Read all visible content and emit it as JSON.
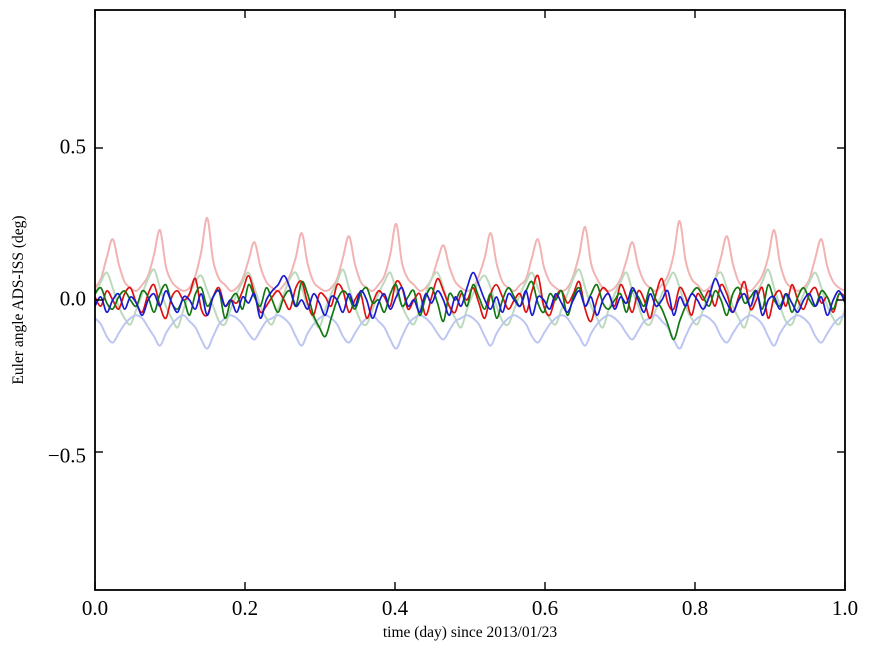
{
  "figure": {
    "xlabel": "time (day) since 2013/01/23",
    "ylabel": "Euler angle ADS-ISS (deg)"
  },
  "axes": {
    "xlim": [
      0.0,
      1.0
    ],
    "ylim": [
      -0.954,
      0.954
    ],
    "xticks": [
      0.0,
      0.2,
      0.4,
      0.6,
      0.8,
      1.0
    ],
    "xtick_labels": [
      "0.0",
      "0.2",
      "0.4",
      "0.6",
      "0.8",
      "1.0"
    ],
    "yticks": [
      0.5,
      0.0,
      -0.5
    ],
    "ytick_labels": [
      "0.5",
      "0.0",
      "−0.5"
    ],
    "background": "#ffffff",
    "frame_color": "#000000",
    "grid": false,
    "legend": "none"
  },
  "chart_data": {
    "type": "line",
    "title": "",
    "xlabel": "time (day) since 2013/01/23",
    "ylabel": "Euler angle ADS-ISS (deg)",
    "xlim": [
      0.0,
      1.0
    ],
    "ylim": [
      -0.954,
      0.954
    ],
    "grid": false,
    "legend": "none",
    "n_points": 128,
    "x_sampling": "128 uniform samples of time from 0.0 to 1.0 day; about 16 oscillation cycles per day",
    "series": [
      {
        "name": "pale-red",
        "color": "#f2b3b3",
        "width": 2.0,
        "values": [
          0.04,
          0.07,
          0.14,
          0.2,
          0.12,
          0.06,
          0.04,
          0.03,
          0.05,
          0.08,
          0.15,
          0.23,
          0.11,
          0.06,
          0.04,
          0.03,
          0.04,
          0.08,
          0.16,
          0.27,
          0.13,
          0.07,
          0.05,
          0.03,
          0.04,
          0.07,
          0.13,
          0.19,
          0.11,
          0.06,
          0.04,
          0.03,
          0.05,
          0.08,
          0.14,
          0.22,
          0.12,
          0.06,
          0.04,
          0.03,
          0.04,
          0.07,
          0.14,
          0.21,
          0.12,
          0.06,
          0.04,
          0.03,
          0.05,
          0.08,
          0.15,
          0.25,
          0.12,
          0.07,
          0.05,
          0.03,
          0.04,
          0.07,
          0.13,
          0.18,
          0.11,
          0.06,
          0.04,
          0.03,
          0.04,
          0.08,
          0.14,
          0.22,
          0.12,
          0.06,
          0.04,
          0.03,
          0.05,
          0.07,
          0.14,
          0.2,
          0.11,
          0.06,
          0.04,
          0.03,
          0.04,
          0.08,
          0.15,
          0.24,
          0.12,
          0.07,
          0.04,
          0.03,
          0.04,
          0.07,
          0.13,
          0.19,
          0.11,
          0.06,
          0.04,
          0.03,
          0.05,
          0.08,
          0.15,
          0.26,
          0.13,
          0.07,
          0.05,
          0.03,
          0.04,
          0.07,
          0.14,
          0.21,
          0.12,
          0.06,
          0.04,
          0.03,
          0.05,
          0.08,
          0.14,
          0.23,
          0.12,
          0.06,
          0.04,
          0.03,
          0.04,
          0.07,
          0.14,
          0.2,
          0.11,
          0.06,
          0.04,
          0.03
        ]
      },
      {
        "name": "pale-green",
        "color": "#bdd9bd",
        "width": 2.0,
        "values": [
          0.02,
          0.06,
          0.09,
          0.04,
          -0.02,
          -0.06,
          -0.08,
          -0.03,
          0.02,
          0.07,
          0.1,
          0.04,
          -0.02,
          -0.06,
          -0.09,
          -0.03,
          0.02,
          0.06,
          0.08,
          0.03,
          -0.02,
          -0.07,
          -0.08,
          -0.03,
          0.02,
          0.06,
          0.09,
          0.04,
          -0.02,
          -0.06,
          -0.08,
          -0.03,
          0.02,
          0.07,
          0.09,
          0.04,
          -0.02,
          -0.06,
          -0.09,
          -0.03,
          0.02,
          0.06,
          0.1,
          0.04,
          -0.02,
          -0.07,
          -0.08,
          -0.03,
          0.02,
          0.06,
          0.09,
          0.03,
          -0.02,
          -0.06,
          -0.08,
          -0.03,
          0.02,
          0.07,
          0.09,
          0.04,
          -0.02,
          -0.06,
          -0.09,
          -0.03,
          0.02,
          0.06,
          0.08,
          0.04,
          -0.02,
          -0.07,
          -0.08,
          -0.03,
          0.02,
          0.06,
          0.09,
          0.04,
          -0.02,
          -0.06,
          -0.08,
          -0.03,
          0.02,
          0.07,
          0.1,
          0.04,
          -0.02,
          -0.06,
          -0.09,
          -0.03,
          0.02,
          0.06,
          0.09,
          0.03,
          -0.02,
          -0.07,
          -0.08,
          -0.03,
          0.02,
          0.06,
          0.09,
          0.04,
          -0.02,
          -0.06,
          -0.08,
          -0.03,
          0.02,
          0.07,
          0.09,
          0.04,
          -0.02,
          -0.06,
          -0.09,
          -0.03,
          0.02,
          0.06,
          0.1,
          0.04,
          -0.02,
          -0.07,
          -0.08,
          -0.03,
          0.02,
          0.06,
          0.09,
          0.04,
          -0.02,
          -0.06,
          -0.08,
          -0.03
        ]
      },
      {
        "name": "pale-blue",
        "color": "#bdc6f2",
        "width": 2.0,
        "values": [
          -0.06,
          -0.08,
          -0.12,
          -0.14,
          -0.11,
          -0.08,
          -0.06,
          -0.05,
          -0.06,
          -0.09,
          -0.12,
          -0.15,
          -0.11,
          -0.08,
          -0.06,
          -0.05,
          -0.07,
          -0.09,
          -0.13,
          -0.16,
          -0.12,
          -0.08,
          -0.06,
          -0.05,
          -0.06,
          -0.08,
          -0.11,
          -0.13,
          -0.1,
          -0.07,
          -0.06,
          -0.05,
          -0.06,
          -0.08,
          -0.12,
          -0.15,
          -0.11,
          -0.08,
          -0.06,
          -0.05,
          -0.06,
          -0.08,
          -0.12,
          -0.14,
          -0.11,
          -0.08,
          -0.06,
          -0.05,
          -0.07,
          -0.09,
          -0.13,
          -0.16,
          -0.12,
          -0.08,
          -0.06,
          -0.05,
          -0.06,
          -0.08,
          -0.11,
          -0.13,
          -0.1,
          -0.07,
          -0.06,
          -0.05,
          -0.06,
          -0.08,
          -0.12,
          -0.15,
          -0.11,
          -0.08,
          -0.06,
          -0.05,
          -0.06,
          -0.08,
          -0.12,
          -0.14,
          -0.11,
          -0.08,
          -0.06,
          -0.05,
          -0.06,
          -0.09,
          -0.12,
          -0.15,
          -0.11,
          -0.08,
          -0.06,
          -0.05,
          -0.06,
          -0.08,
          -0.11,
          -0.13,
          -0.1,
          -0.07,
          -0.06,
          -0.05,
          -0.07,
          -0.09,
          -0.13,
          -0.16,
          -0.12,
          -0.08,
          -0.06,
          -0.05,
          -0.06,
          -0.08,
          -0.12,
          -0.14,
          -0.11,
          -0.08,
          -0.06,
          -0.05,
          -0.06,
          -0.08,
          -0.12,
          -0.15,
          -0.11,
          -0.08,
          -0.06,
          -0.05,
          -0.06,
          -0.08,
          -0.12,
          -0.14,
          -0.11,
          -0.08,
          -0.06,
          -0.05
        ]
      },
      {
        "name": "red",
        "color": "#e01010",
        "width": 1.7,
        "values": [
          0.01,
          -0.02,
          0.03,
          0.0,
          -0.03,
          0.02,
          0.04,
          -0.01,
          -0.04,
          0.02,
          0.05,
          -0.02,
          -0.06,
          0.01,
          0.03,
          0.0,
          0.02,
          0.07,
          -0.03,
          -0.05,
          0.01,
          0.04,
          -0.02,
          0.0,
          -0.01,
          0.03,
          0.08,
          0.02,
          -0.04,
          -0.02,
          0.01,
          0.03,
          0.0,
          -0.03,
          0.04,
          0.06,
          -0.01,
          -0.05,
          0.02,
          0.01,
          -0.02,
          0.05,
          0.03,
          -0.04,
          0.0,
          0.02,
          -0.06,
          -0.01,
          0.03,
          0.01,
          -0.02,
          0.06,
          0.04,
          -0.03,
          0.0,
          0.02,
          -0.05,
          0.01,
          0.07,
          0.03,
          -0.02,
          -0.04,
          0.02,
          0.0,
          0.04,
          -0.01,
          -0.06,
          0.02,
          0.05,
          0.01,
          -0.03,
          0.0,
          0.02,
          -0.04,
          0.03,
          0.08,
          -0.02,
          -0.05,
          0.01,
          0.03,
          -0.01,
          0.02,
          0.06,
          -0.03,
          -0.07,
          0.0,
          0.04,
          0.02,
          -0.02,
          0.05,
          0.01,
          -0.04,
          0.03,
          0.0,
          -0.06,
          0.02,
          0.07,
          -0.01,
          -0.03,
          0.04,
          0.01,
          -0.05,
          0.02,
          0.0,
          0.03,
          -0.02,
          0.05,
          0.02,
          -0.04,
          0.01,
          0.06,
          -0.03,
          0.0,
          0.04,
          -0.06,
          0.01,
          0.03,
          -0.02,
          0.05,
          0.0,
          -0.03,
          0.02,
          0.04,
          -0.01,
          0.01,
          -0.04,
          0.02,
          0.01
        ]
      },
      {
        "name": "green",
        "color": "#117711",
        "width": 1.7,
        "values": [
          0.02,
          0.04,
          -0.01,
          -0.03,
          0.01,
          0.03,
          0.0,
          -0.02,
          0.03,
          0.01,
          -0.04,
          0.02,
          0.05,
          -0.01,
          -0.03,
          0.0,
          -0.05,
          0.02,
          0.04,
          -0.02,
          0.01,
          0.03,
          -0.06,
          0.0,
          0.02,
          -0.03,
          0.05,
          0.01,
          -0.02,
          0.04,
          0.0,
          -0.04,
          0.01,
          0.03,
          -0.02,
          0.06,
          0.02,
          -0.05,
          -0.09,
          -0.12,
          -0.06,
          0.0,
          0.03,
          0.01,
          -0.03,
          0.02,
          0.04,
          -0.01,
          0.0,
          -0.04,
          0.02,
          0.05,
          -0.02,
          0.01,
          0.03,
          -0.05,
          0.01,
          0.04,
          -0.01,
          -0.07,
          0.02,
          0.0,
          0.03,
          -0.02,
          0.05,
          0.01,
          -0.03,
          0.02,
          -0.06,
          0.0,
          0.04,
          0.01,
          -0.02,
          0.03,
          0.06,
          -0.01,
          -0.04,
          0.02,
          0.0,
          0.03,
          -0.05,
          0.01,
          0.04,
          -0.02,
          0.02,
          0.05,
          -0.01,
          -0.03,
          0.0,
          0.02,
          -0.04,
          0.03,
          0.01,
          -0.02,
          0.04,
          0.0,
          -0.03,
          -0.08,
          -0.13,
          -0.07,
          -0.02,
          0.02,
          0.04,
          0.01,
          -0.02,
          0.03,
          0.0,
          -0.05,
          0.02,
          0.04,
          -0.01,
          0.01,
          0.03,
          -0.03,
          0.05,
          0.0,
          -0.02,
          0.02,
          -0.04,
          0.01,
          0.04,
          0.0,
          -0.02,
          0.03,
          0.01,
          -0.03,
          0.02,
          0.0
        ]
      },
      {
        "name": "blue",
        "color": "#1a1ad1",
        "width": 1.7,
        "values": [
          -0.02,
          0.01,
          -0.04,
          0.0,
          0.02,
          -0.03,
          0.01,
          -0.01,
          -0.05,
          0.0,
          0.02,
          -0.02,
          0.03,
          -0.01,
          -0.04,
          0.01,
          0.0,
          -0.03,
          0.02,
          -0.05,
          0.01,
          0.03,
          -0.02,
          0.0,
          -0.04,
          0.01,
          -0.01,
          0.02,
          -0.06,
          0.0,
          0.03,
          0.05,
          0.08,
          0.04,
          -0.02,
          0.0,
          -0.03,
          0.02,
          -0.01,
          -0.05,
          0.01,
          0.0,
          -0.04,
          0.02,
          -0.02,
          0.03,
          0.0,
          -0.06,
          -0.01,
          0.02,
          -0.03,
          0.01,
          0.04,
          -0.02,
          0.0,
          -0.04,
          0.02,
          -0.01,
          0.03,
          0.0,
          -0.05,
          0.01,
          -0.02,
          0.04,
          0.09,
          0.05,
          0.0,
          -0.03,
          0.01,
          -0.04,
          0.02,
          0.0,
          -0.02,
          0.03,
          -0.05,
          0.01,
          0.0,
          -0.03,
          0.02,
          -0.01,
          -0.04,
          0.0,
          0.03,
          -0.02,
          0.01,
          -0.05,
          0.0,
          0.02,
          -0.03,
          0.01,
          -0.01,
          0.04,
          0.0,
          -0.04,
          0.02,
          -0.02,
          0.0,
          0.03,
          -0.05,
          0.01,
          -0.02,
          0.02,
          0.0,
          -0.03,
          0.01,
          0.07,
          0.03,
          -0.01,
          -0.04,
          0.0,
          0.02,
          -0.02,
          0.03,
          -0.05,
          0.0,
          0.01,
          -0.03,
          0.02,
          -0.01,
          -0.04,
          0.0,
          0.02,
          -0.02,
          0.01,
          -0.05,
          0.0,
          0.03,
          -0.01
        ]
      }
    ]
  }
}
